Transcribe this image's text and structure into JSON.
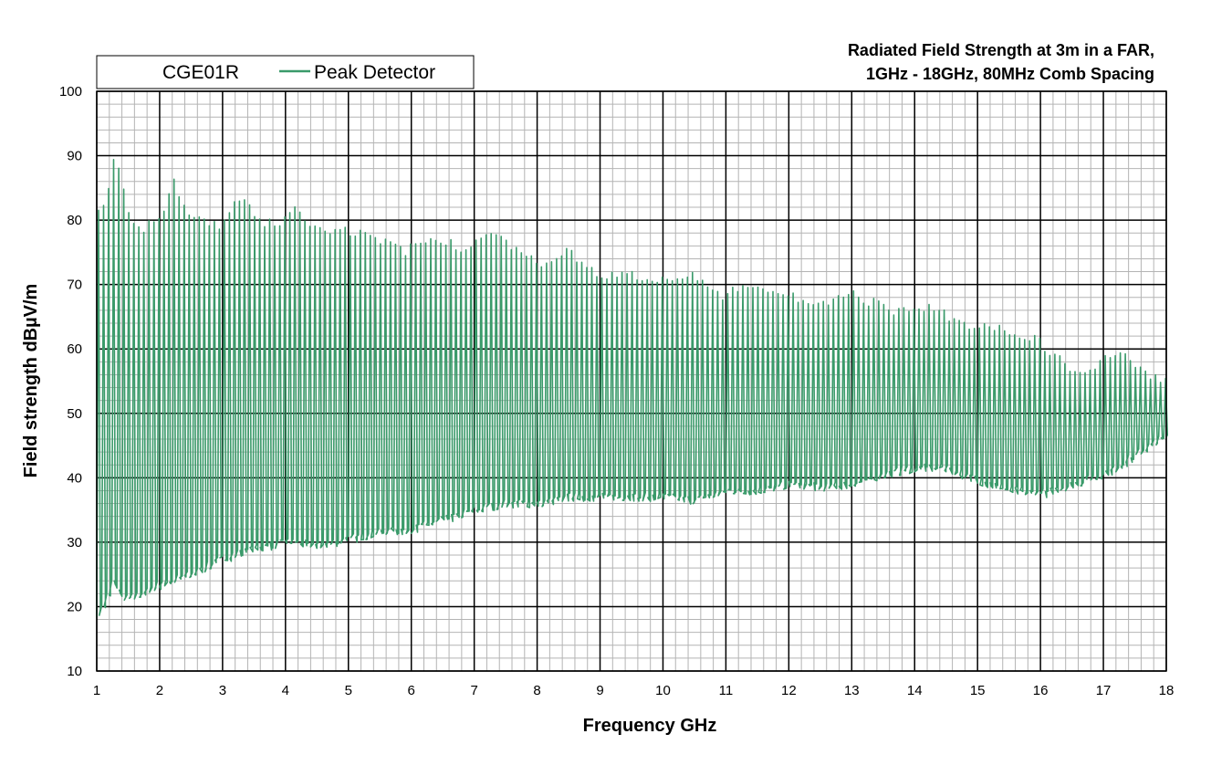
{
  "chart_data": {
    "type": "line",
    "title_lines": [
      "Radiated Field Strength at 3m in a FAR,",
      "1GHz - 18GHz, 80MHz Comb Spacing"
    ],
    "xlabel": "Frequency  GHz",
    "ylabel": "Field strength  dBµV/m",
    "xlim": [
      1,
      18
    ],
    "ylim": [
      10,
      100
    ],
    "x_ticks": [
      1,
      2,
      3,
      4,
      5,
      6,
      7,
      8,
      9,
      10,
      11,
      12,
      13,
      14,
      15,
      16,
      17,
      18
    ],
    "y_ticks": [
      10,
      20,
      30,
      40,
      50,
      60,
      70,
      80,
      90,
      100
    ],
    "x_minor_step": 0.2,
    "y_minor_step": 2,
    "grid": true,
    "legend": {
      "placement": "top-left",
      "entries": [
        "CGE01R",
        "Peak Detector"
      ]
    },
    "comb_spacing_ghz": 0.08,
    "series": [
      {
        "name": "Peak Detector",
        "color": "#3a9a6a",
        "peak_envelope": {
          "x": [
            1.0,
            1.1,
            1.2,
            1.28,
            1.35,
            1.45,
            1.6,
            1.8,
            2.0,
            2.1,
            2.22,
            2.3,
            2.5,
            2.8,
            3.0,
            3.15,
            3.35,
            3.6,
            4.0,
            4.15,
            4.4,
            4.7,
            5.0,
            5.3,
            5.6,
            5.9,
            6.1,
            6.3,
            6.6,
            6.8,
            7.0,
            7.3,
            7.5,
            7.7,
            8.0,
            8.2,
            8.4,
            8.6,
            8.8,
            9.0,
            9.5,
            10.0,
            10.4,
            10.6,
            10.9,
            11.2,
            11.5,
            11.9,
            12.2,
            12.5,
            12.9,
            13.3,
            13.7,
            14.0,
            14.3,
            14.7,
            15.0,
            15.3,
            15.7,
            16.0,
            16.4,
            16.7,
            16.9,
            17.15,
            17.4,
            17.6,
            17.8,
            18.0
          ],
          "y": [
            82,
            83,
            88,
            92,
            87,
            83,
            79,
            80,
            81,
            84,
            88,
            84,
            81,
            80,
            80,
            84,
            83,
            80,
            81,
            83,
            80,
            79,
            79,
            78,
            77,
            76,
            77,
            78,
            77.5,
            76,
            78,
            78.5,
            77,
            76,
            74,
            75,
            76,
            75,
            73,
            72,
            72,
            71.5,
            72.5,
            71,
            69,
            70.5,
            70,
            70,
            68,
            68,
            69.5,
            68,
            66.5,
            67.5,
            67,
            65,
            64,
            64,
            63,
            61.5,
            58,
            56.5,
            58,
            60.5,
            59,
            57,
            56,
            56
          ]
        },
        "floor_envelope": {
          "x": [
            1.0,
            1.1,
            1.25,
            1.4,
            1.6,
            2.0,
            2.5,
            3.0,
            3.5,
            4.0,
            4.5,
            5.0,
            5.5,
            6.0,
            6.5,
            7.0,
            7.5,
            8.0,
            8.5,
            9.0,
            9.5,
            10.0,
            10.5,
            11.0,
            11.5,
            12.0,
            12.5,
            13.0,
            13.5,
            14.0,
            14.5,
            15.0,
            15.5,
            16.0,
            16.5,
            17.0,
            17.5,
            18.0
          ],
          "y": [
            19,
            20,
            24,
            21,
            21.5,
            23.5,
            25,
            27.5,
            29,
            30,
            29.5,
            30.5,
            31.5,
            32,
            33.5,
            35,
            36,
            36,
            37,
            37,
            37,
            37,
            36.5,
            38,
            38,
            39,
            38.5,
            39,
            40.5,
            41.5,
            41.5,
            39.5,
            38,
            37.5,
            39,
            40.5,
            43.5,
            46.5
          ]
        }
      }
    ]
  }
}
